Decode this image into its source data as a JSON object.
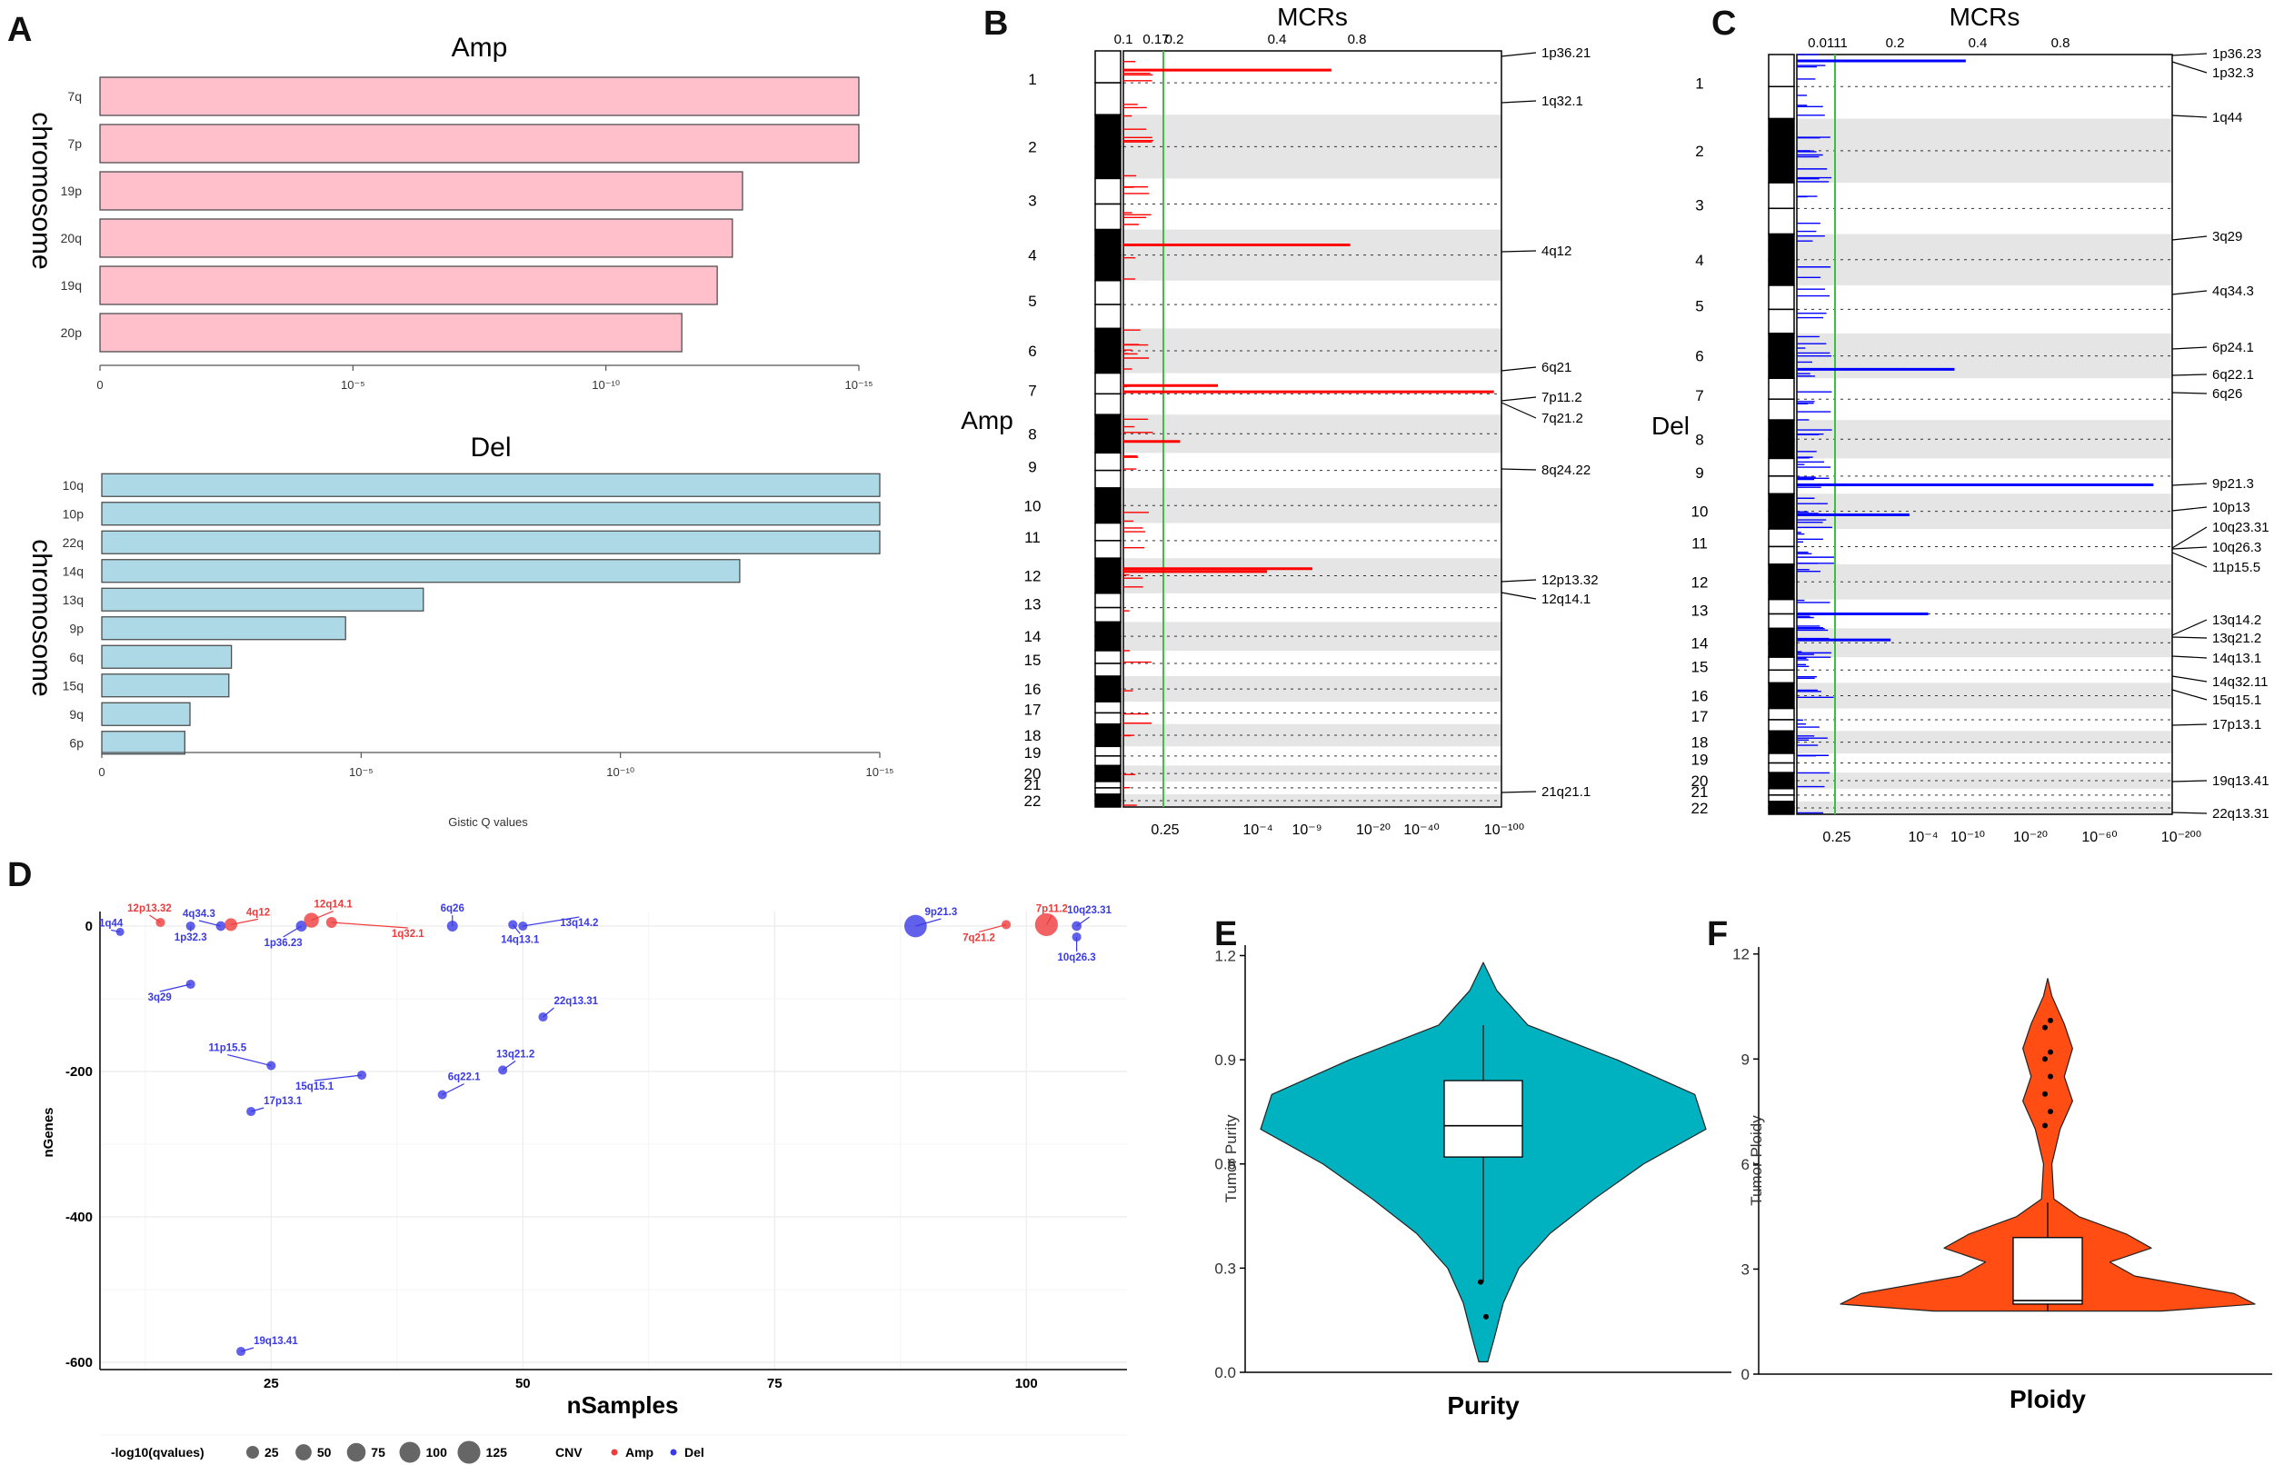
{
  "panels": [
    "A",
    "B",
    "C",
    "D",
    "E",
    "F"
  ],
  "chart_data": [
    {
      "id": "A_amp",
      "type": "bar",
      "orientation": "horizontal",
      "title": "Amp",
      "ylabel": "chromosome",
      "categories": [
        "7q",
        "7p",
        "19p",
        "20q",
        "19q",
        "20p"
      ],
      "values": [
        15,
        15,
        12.7,
        12.5,
        12.2,
        11.5
      ],
      "value_units": "-log10(Gistic Q value)",
      "xticks": [
        "0",
        "10⁻⁵",
        "10⁻¹⁰",
        "10⁻¹⁵"
      ],
      "xlim": [
        0,
        15
      ],
      "color": "#ffc0cb"
    },
    {
      "id": "A_del",
      "type": "bar",
      "orientation": "horizontal",
      "title": "Del",
      "ylabel": "chromosome",
      "xlabel": "Gistic Q values",
      "categories": [
        "10q",
        "10p",
        "22q",
        "14q",
        "13q",
        "9p",
        "6q",
        "15q",
        "9q",
        "6p"
      ],
      "values": [
        15,
        15,
        15,
        12.3,
        6.2,
        4.7,
        2.5,
        2.45,
        1.7,
        1.6
      ],
      "value_units": "-log10(Gistic Q value)",
      "xticks": [
        "0",
        "10⁻⁵",
        "10⁻¹⁰",
        "10⁻¹⁵"
      ],
      "xlim": [
        0,
        15
      ],
      "color": "#add8e6"
    },
    {
      "id": "B",
      "type": "bar",
      "title": "MCRs",
      "side_label": "Amp",
      "top_ticks": [
        "0.1",
        "0.17",
        "0.2",
        "0.4",
        "0.8"
      ],
      "bottom_ticks": [
        "0.25",
        "10⁻⁴",
        "10⁻⁹",
        "10⁻²⁰",
        "10⁻⁴⁰",
        "10⁻¹⁰⁰"
      ],
      "chromosomes": [
        "1",
        "2",
        "3",
        "4",
        "5",
        "6",
        "7",
        "8",
        "9",
        "10",
        "11",
        "12",
        "13",
        "14",
        "15",
        "16",
        "17",
        "18",
        "19",
        "20",
        "21",
        "22"
      ],
      "peaks": [
        {
          "chrom": "1",
          "pos": 0.3,
          "value": 0.55
        },
        {
          "chrom": "4",
          "pos": 0.3,
          "value": 0.6
        },
        {
          "chrom": "7",
          "pos": 0.45,
          "value": 0.98
        },
        {
          "chrom": "7",
          "pos": 0.3,
          "value": 0.25
        },
        {
          "chrom": "8",
          "pos": 0.7,
          "value": 0.15
        },
        {
          "chrom": "12",
          "pos": 0.3,
          "value": 0.5
        },
        {
          "chrom": "12",
          "pos": 0.38,
          "value": 0.38
        }
      ],
      "annotations": [
        "1p36.21",
        "1q32.1",
        "4q12",
        "6q21",
        "7p11.2",
        "7q21.2",
        "8q24.22",
        "12p13.32",
        "12q14.1",
        "21q21.1"
      ],
      "threshold": "0.25",
      "color": "#ff0000"
    },
    {
      "id": "C",
      "type": "bar",
      "title": "MCRs",
      "side_label": "Del",
      "top_ticks": [
        "0.0111",
        "0.2",
        "0.4",
        "0.8"
      ],
      "bottom_ticks": [
        "0.25",
        "10⁻⁴",
        "10⁻¹⁰",
        "10⁻²⁰",
        "10⁻⁶⁰",
        "10⁻²⁰⁰"
      ],
      "chromosomes": [
        "1",
        "2",
        "3",
        "4",
        "5",
        "6",
        "7",
        "8",
        "9",
        "10",
        "11",
        "12",
        "13",
        "14",
        "15",
        "16",
        "17",
        "18",
        "19",
        "20",
        "21",
        "22"
      ],
      "peaks": [
        {
          "chrom": "1",
          "pos": 0.1,
          "value": 0.45
        },
        {
          "chrom": "6",
          "pos": 0.8,
          "value": 0.42
        },
        {
          "chrom": "9",
          "pos": 0.75,
          "value": 0.95
        },
        {
          "chrom": "10",
          "pos": 0.6,
          "value": 0.3
        },
        {
          "chrom": "13",
          "pos": 0.5,
          "value": 0.35
        },
        {
          "chrom": "14",
          "pos": 0.4,
          "value": 0.25
        }
      ],
      "annotations": [
        "1p36.23",
        "1p32.3",
        "1q44",
        "3q29",
        "4q34.3",
        "6p24.1",
        "6q22.1",
        "6q26",
        "9p21.3",
        "10p13",
        "10q23.31",
        "10q26.3",
        "11p15.5",
        "13q14.2",
        "13q21.2",
        "14q13.1",
        "14q32.11",
        "15q15.1",
        "17p13.1",
        "19q13.41",
        "22q13.31"
      ],
      "threshold": "0.25",
      "color": "#0000ff"
    },
    {
      "id": "D",
      "type": "scatter",
      "xlabel": "nSamples",
      "ylabel": "nGenes",
      "xticks": [
        25,
        50,
        75,
        100
      ],
      "yticks": [
        0,
        -200,
        -400,
        -600
      ],
      "xlim": [
        8,
        110
      ],
      "ylim": [
        -610,
        20
      ],
      "legend_size_title": "-log10(qvalues)",
      "legend_sizes": [
        25,
        50,
        75,
        100,
        125
      ],
      "legend_color_title": "CNV",
      "legend_colors": [
        {
          "name": "Amp",
          "color": "#ef3b3b"
        },
        {
          "name": "Del",
          "color": "#3a3ae6"
        }
      ],
      "points": [
        {
          "label": "1q44",
          "x": 10,
          "y": -8,
          "cnv": "Del",
          "q": 5
        },
        {
          "label": "12p13.32",
          "x": 14,
          "y": 5,
          "cnv": "Amp",
          "q": 8
        },
        {
          "label": "1p32.3",
          "x": 17,
          "y": 0,
          "cnv": "Del",
          "q": 8
        },
        {
          "label": "3q29",
          "x": 17,
          "y": -80,
          "cnv": "Del",
          "q": 8
        },
        {
          "label": "4q34.3",
          "x": 20,
          "y": 0,
          "cnv": "Del",
          "q": 10
        },
        {
          "label": "4q12",
          "x": 21,
          "y": 2,
          "cnv": "Amp",
          "q": 25
        },
        {
          "label": "19q13.41",
          "x": 22,
          "y": -585,
          "cnv": "Del",
          "q": 8
        },
        {
          "label": "17p13.1",
          "x": 23,
          "y": -255,
          "cnv": "Del",
          "q": 8
        },
        {
          "label": "11p15.5",
          "x": 25,
          "y": -192,
          "cnv": "Del",
          "q": 8
        },
        {
          "label": "1p36.23",
          "x": 28,
          "y": 0,
          "cnv": "Del",
          "q": 15
        },
        {
          "label": "12q14.1",
          "x": 29,
          "y": 8,
          "cnv": "Amp",
          "q": 40
        },
        {
          "label": "1q32.1",
          "x": 31,
          "y": 5,
          "cnv": "Amp",
          "q": 15
        },
        {
          "label": "15q15.1",
          "x": 34,
          "y": -205,
          "cnv": "Del",
          "q": 8
        },
        {
          "label": "6q22.1",
          "x": 42,
          "y": -232,
          "cnv": "Del",
          "q": 8
        },
        {
          "label": "6q26",
          "x": 43,
          "y": 0,
          "cnv": "Del",
          "q": 15
        },
        {
          "label": "13q21.2",
          "x": 48,
          "y": -198,
          "cnv": "Del",
          "q": 8
        },
        {
          "label": "14q13.1",
          "x": 49,
          "y": 2,
          "cnv": "Del",
          "q": 8
        },
        {
          "label": "13q14.2",
          "x": 50,
          "y": 0,
          "cnv": "Del",
          "q": 8
        },
        {
          "label": "22q13.31",
          "x": 52,
          "y": -125,
          "cnv": "Del",
          "q": 8
        },
        {
          "label": "9p21.3",
          "x": 89,
          "y": 0,
          "cnv": "Del",
          "q": 120
        },
        {
          "label": "7q21.2",
          "x": 98,
          "y": 2,
          "cnv": "Amp",
          "q": 8
        },
        {
          "label": "7p11.2",
          "x": 102,
          "y": 2,
          "cnv": "Amp",
          "q": 125
        },
        {
          "label": "10q23.31",
          "x": 105,
          "y": 0,
          "cnv": "Del",
          "q": 10
        },
        {
          "label": "10q26.3",
          "x": 105,
          "y": -15,
          "cnv": "Del",
          "q": 8
        }
      ]
    },
    {
      "id": "E",
      "type": "violin",
      "xlabel": "Purity",
      "ylabel": "Tumor Purity",
      "yticks": [
        0.0,
        0.3,
        0.6,
        0.9,
        1.2
      ],
      "ylim": [
        0,
        1.23
      ],
      "min": 0.03,
      "max": 1.18,
      "box": {
        "q1": 0.62,
        "median": 0.71,
        "q3": 0.84,
        "whisker_low": 0.26,
        "whisker_high": 1.0
      },
      "outliers": [
        0.26,
        0.16
      ],
      "density": [
        [
          0.03,
          0.02
        ],
        [
          0.1,
          0.05
        ],
        [
          0.2,
          0.09
        ],
        [
          0.3,
          0.16
        ],
        [
          0.4,
          0.3
        ],
        [
          0.5,
          0.5
        ],
        [
          0.6,
          0.72
        ],
        [
          0.7,
          1.0
        ],
        [
          0.8,
          0.95
        ],
        [
          0.9,
          0.6
        ],
        [
          1.0,
          0.2
        ],
        [
          1.1,
          0.06
        ],
        [
          1.18,
          0.0
        ]
      ],
      "color": "#00b2c0"
    },
    {
      "id": "F",
      "type": "violin",
      "xlabel": "Ploidy",
      "ylabel": "Tumor Ploidy",
      "yticks": [
        0,
        3,
        6,
        9,
        12
      ],
      "ylim": [
        0,
        12.2
      ],
      "min": 1.8,
      "max": 11.3,
      "box": {
        "q1": 2.0,
        "median": 2.1,
        "q3": 3.9,
        "whisker_low": 1.8,
        "whisker_high": 4.9
      },
      "outliers": [
        7.1,
        7.5,
        8.0,
        8.5,
        9.0,
        9.2,
        9.9,
        10.1
      ],
      "density": [
        [
          1.8,
          0.55
        ],
        [
          2.0,
          1.0
        ],
        [
          2.3,
          0.9
        ],
        [
          2.8,
          0.42
        ],
        [
          3.2,
          0.3
        ],
        [
          3.6,
          0.5
        ],
        [
          4.0,
          0.38
        ],
        [
          4.5,
          0.15
        ],
        [
          5.0,
          0.03
        ],
        [
          6.0,
          0.02
        ],
        [
          7.0,
          0.06
        ],
        [
          7.8,
          0.12
        ],
        [
          8.5,
          0.08
        ],
        [
          9.3,
          0.12
        ],
        [
          10.0,
          0.08
        ],
        [
          10.8,
          0.02
        ],
        [
          11.3,
          0.0
        ]
      ],
      "color": "#ff4d14"
    }
  ]
}
